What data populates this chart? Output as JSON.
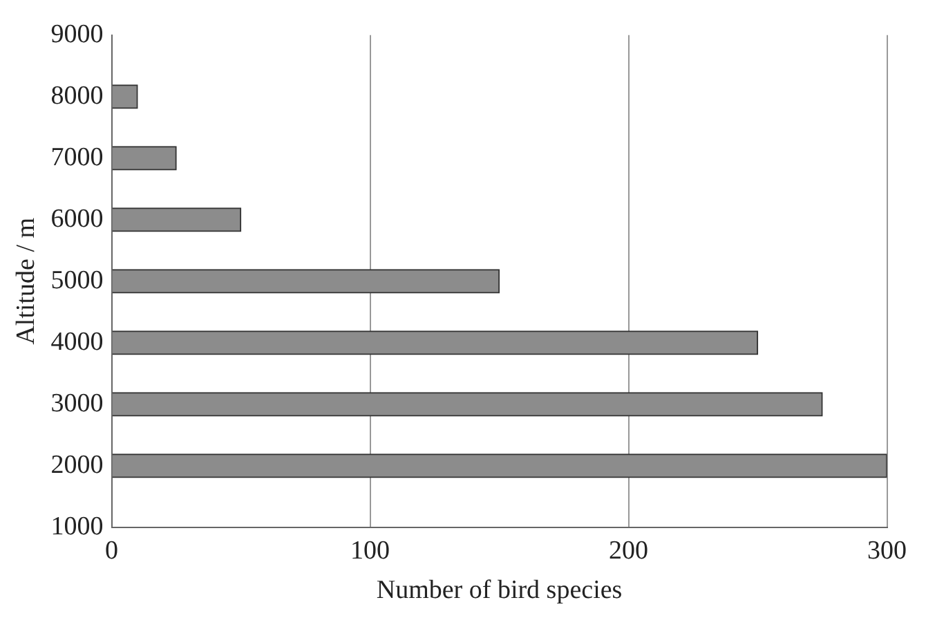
{
  "chart_data": {
    "type": "bar",
    "orientation": "horizontal",
    "xlabel": "Number of bird species",
    "ylabel": "Altitude / m",
    "x": [
      2000,
      3000,
      4000,
      5000,
      6000,
      7000,
      8000
    ],
    "values": [
      300,
      275,
      250,
      150,
      50,
      25,
      10
    ],
    "color": "#8c8c8c",
    "xlim": [
      0,
      300
    ],
    "xticks": [
      0,
      100,
      200,
      300
    ],
    "ylim": [
      1000,
      9000
    ],
    "yticks": [
      1000,
      2000,
      3000,
      4000,
      5000,
      6000,
      7000,
      8000,
      9000
    ],
    "grid": "x",
    "legend": false
  }
}
